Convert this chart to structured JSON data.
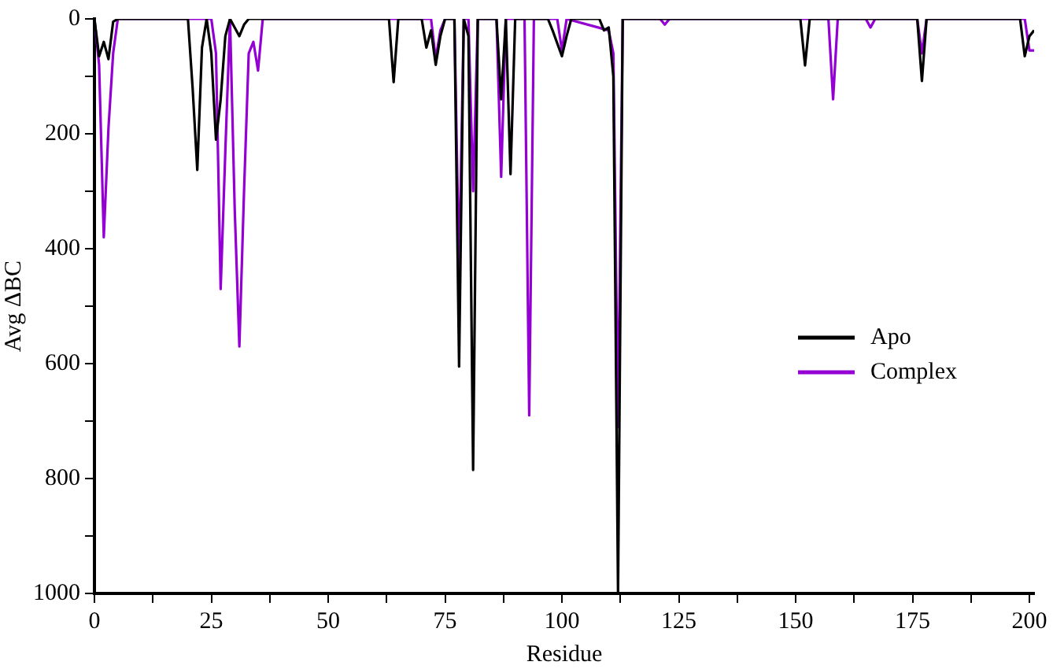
{
  "chart_data": {
    "type": "line",
    "xlabel": "Residue",
    "ylabel": "Avg ΔBC",
    "xlim": [
      0,
      201
    ],
    "xticks": [
      0,
      {
        "value": 12.5,
        "label": null
      },
      25,
      {
        "value": 37.5,
        "label": null
      },
      50,
      {
        "value": 62.5,
        "label": null
      },
      75,
      {
        "value": 87.5,
        "label": null
      },
      100,
      {
        "value": 112.5,
        "label": null
      },
      125,
      {
        "value": 137.5,
        "label": null
      },
      150,
      {
        "value": 162.5,
        "label": null
      },
      175,
      {
        "value": 187.5,
        "label": null
      },
      200
    ],
    "ylim": [
      1000,
      0
    ],
    "yticks": [
      0,
      {
        "value": 100,
        "label": null
      },
      200,
      {
        "value": 300,
        "label": null
      },
      400,
      {
        "value": 500,
        "label": null
      },
      600,
      {
        "value": 700,
        "label": null
      },
      800,
      {
        "value": 900,
        "label": null
      },
      1000
    ],
    "grid": false,
    "legend": "right",
    "marker": "none",
    "line_style": "solid",
    "series": [
      {
        "name": "Apo",
        "color": "#000000",
        "x": [
          0,
          1,
          2,
          3,
          4,
          5,
          20,
          21,
          22,
          23,
          24,
          25,
          26,
          27,
          28,
          29,
          30,
          31,
          32,
          33,
          63,
          64,
          65,
          70,
          71,
          72,
          73,
          74,
          75,
          77,
          78,
          79,
          80,
          81,
          82,
          86,
          87,
          88,
          89,
          90,
          97,
          98,
          100,
          101,
          102,
          108,
          109,
          110,
          111,
          112,
          113,
          151,
          152,
          153,
          176,
          177,
          178,
          198,
          199,
          200,
          201
        ],
        "values": [
          0,
          65,
          40,
          70,
          5,
          0,
          0,
          120,
          263,
          50,
          0,
          60,
          210,
          140,
          30,
          0,
          15,
          30,
          10,
          0,
          0,
          110,
          0,
          0,
          50,
          20,
          80,
          30,
          0,
          0,
          605,
          0,
          30,
          785,
          0,
          0,
          140,
          0,
          270,
          0,
          0,
          20,
          65,
          30,
          0,
          0,
          20,
          15,
          100,
          1000,
          0,
          0,
          81,
          0,
          0,
          108,
          0,
          0,
          65,
          30,
          20
        ]
      },
      {
        "name": "Complex",
        "color": "#9400d3",
        "x": [
          0,
          1,
          2,
          3,
          4,
          5,
          25,
          26,
          27,
          28,
          29,
          30,
          31,
          32,
          33,
          34,
          35,
          36,
          72,
          73,
          74,
          75,
          77,
          78,
          79,
          80,
          81,
          82,
          86,
          87,
          88,
          92,
          93,
          94,
          99,
          100,
          101,
          110,
          111,
          112,
          113,
          121,
          122,
          123,
          157,
          158,
          159,
          165,
          166,
          167,
          176,
          177,
          178,
          199,
          200,
          201
        ],
        "values": [
          0,
          80,
          380,
          190,
          60,
          0,
          0,
          60,
          470,
          230,
          0,
          330,
          570,
          300,
          60,
          40,
          90,
          0,
          0,
          70,
          20,
          0,
          0,
          440,
          0,
          0,
          300,
          0,
          0,
          275,
          0,
          0,
          690,
          0,
          0,
          55,
          0,
          20,
          60,
          710,
          0,
          0,
          10,
          0,
          0,
          140,
          0,
          0,
          15,
          0,
          0,
          60,
          0,
          0,
          55,
          55
        ]
      }
    ]
  }
}
